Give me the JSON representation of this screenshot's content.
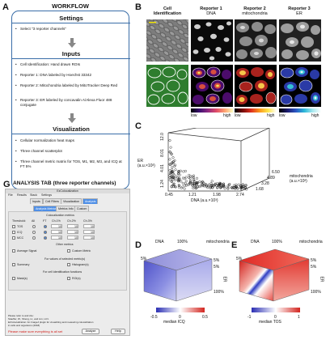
{
  "labels": {
    "a": "A",
    "b": "B",
    "c": "C",
    "d": "D",
    "e": "E",
    "g": "G"
  },
  "workflow": {
    "title": "WORKFLOW",
    "settings_heading": "Settings",
    "settings_items": [
      "Select \"3 reporter channels\""
    ],
    "inputs_heading": "Inputs",
    "inputs_items": [
      "Cell Identification: Hand drawn ROIs",
      "Reporter 1: DNA labeled by Hoechst 33342",
      "Reporter 2: Mitochondria labeled by MitoTracker Deep Red",
      "Reporter 3: ER labeled by concavalin A/Alexa Fluor 488 conjugate"
    ],
    "visualization_heading": "Visualization",
    "visualization_items": [
      "Cellular normalization heat maps",
      "Three channel scatterplot",
      "Three channel metric matrix for TOS, M1, M2, M3, and ICQ  at FT 5%"
    ]
  },
  "panel_b": {
    "columns": [
      {
        "title": "Cell\nIdentification",
        "sub": ""
      },
      {
        "title": "Reporter 1",
        "sub": "DNA"
      },
      {
        "title": "Reporter 2",
        "sub": "mitochondria"
      },
      {
        "title": "Reporter 3",
        "sub": "ER"
      }
    ],
    "low": "low",
    "high": "high"
  },
  "panel_c": {
    "er_axis": "ER\n(a.u.×10³)",
    "mito_axis": "mitochondria\n(a.u.×10³)",
    "dna_axis": "DNA (a.u.×10³)",
    "er_ticks": [
      "12.0",
      "8.01",
      "4.01",
      "1.24"
    ],
    "dna_ticks": [
      "0.45",
      "1.21",
      "1.98",
      "2.74"
    ],
    "mito_ticks": [
      "6.50",
      "4.89",
      "3.28",
      "1.68"
    ]
  },
  "panel_d": {
    "dna": "DNA",
    "mito": "mitochondria",
    "er": "ER",
    "top_ticks": [
      "5%",
      "100%",
      "5%"
    ],
    "right_ticks": [
      "5%",
      "100%"
    ],
    "legend_title": "median ICQ",
    "legend_min": "-0.5",
    "legend_mid": "0",
    "legend_max": "0.5"
  },
  "panel_e": {
    "dna": "DNA",
    "mito": "mitochondria",
    "er": "ER",
    "top_ticks": [
      "5%",
      "100%",
      "5%"
    ],
    "right_ticks": [
      "5%",
      "100%"
    ],
    "legend_title": "median TOS",
    "legend_min": "-1",
    "legend_mid": "0",
    "legend_max": "1"
  },
  "analysis": {
    "title": "ANALYSIS TAB (three reporter channels)",
    "window_title": "EzColocalization",
    "menu": [
      "File",
      "Results",
      "Stack",
      "Settings"
    ],
    "tabs": [
      "Inputs",
      "Cell Filters",
      "Visualization",
      "Analysis"
    ],
    "subtabs": [
      "Analysis Metrics",
      "Metrics Info",
      "Custom"
    ],
    "section_title": "Colocalization metrics",
    "col_headers": [
      "Threshold:",
      "All",
      "FT",
      "Ch.1%",
      "Ch.2%",
      "Ch.3%"
    ],
    "metrics": [
      {
        "name": "TOS",
        "v1": "10",
        "v2": "10",
        "v3": "10"
      },
      {
        "name": "ICQ",
        "v1": "10",
        "v2": "10",
        "v3": "10"
      },
      {
        "name": "MCC",
        "v1": "10",
        "v2": "10",
        "v3": "10"
      }
    ],
    "other_metrics": "Other metrics",
    "average_signal": "Average Signal",
    "custom_metric": "Custom Metric",
    "selected_metrics": "For values of selected metric(s)",
    "summary": "Summary",
    "histogram": "Histogram(s)",
    "cell_id_functions": "For cell identification functions",
    "mask": "Mask(s)",
    "roi": "ROI(s)",
    "help_lines": [
      "Please refer to and cite:",
      "Stauffer, W., Sheng, H., and Lim, H.N.",
      "EzColocalization: An ImageJ plugin for visualizing and measuring colocalization",
      "in cells and organisms (2018)"
    ],
    "analyze_button": "Analyze",
    "help_button": "Help",
    "warning": "Please make sure everything is all set"
  }
}
